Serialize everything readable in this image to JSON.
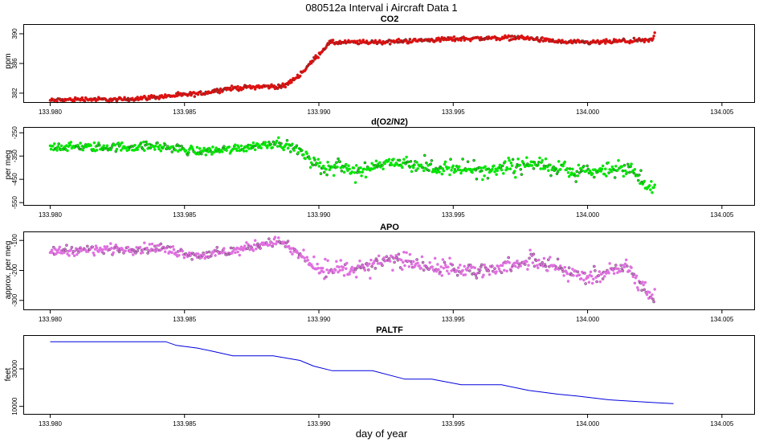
{
  "figure": {
    "title": "080512a   Interval i Aircraft Data 1",
    "xlabel": "day of year"
  },
  "colors": {
    "co2": "#e01010",
    "o2n2": "#00e600",
    "apo": "#e070e0",
    "paltf": "#0000dd",
    "outline": "#333333"
  },
  "chart_data": [
    {
      "type": "scatter",
      "title": "CO2",
      "ylabel": "ppm",
      "xlim": [
        133.979,
        134.0062
      ],
      "ylim": [
        380.8,
        391.3
      ],
      "x_ticks": [
        "133.980",
        "133.985",
        "133.990",
        "133.995",
        "134.000",
        "134.005"
      ],
      "y_ticks": [
        "382",
        "386",
        "390"
      ],
      "x_range": [
        133.98,
        134.0025
      ],
      "series": [
        {
          "name": "CO2",
          "knots_x": [
            133.98,
            133.9812,
            133.9825,
            133.984,
            133.9855,
            133.9866,
            133.9878,
            133.9887,
            133.9893,
            133.9904,
            133.9925,
            133.995,
            133.9975,
            133.999,
            134.0,
            134.0013,
            134.0024,
            134.0025
          ],
          "knots_y": [
            381.0,
            381.2,
            381.1,
            381.5,
            381.9,
            382.6,
            382.9,
            382.9,
            384.5,
            388.8,
            388.9,
            389.3,
            389.5,
            388.9,
            388.8,
            389.0,
            389.1,
            390.0
          ],
          "noise": 0.18
        }
      ]
    },
    {
      "type": "scatter",
      "title": "d(O2/N2)",
      "ylabel": "per meg",
      "xlim": [
        133.979,
        134.0062
      ],
      "ylim": [
        -560,
        -225
      ],
      "x_ticks": [
        "133.980",
        "133.985",
        "133.990",
        "133.995",
        "134.000",
        "134.005"
      ],
      "y_ticks": [
        "-250",
        "-350",
        "-450",
        "-550"
      ],
      "x_range": [
        133.98,
        134.0025
      ],
      "series": [
        {
          "name": "d(O2/N2)",
          "knots_x": [
            133.98,
            133.982,
            133.984,
            133.9855,
            133.9866,
            133.988,
            133.9885,
            133.9893,
            133.99,
            133.9915,
            133.9925,
            133.994,
            133.996,
            133.998,
            134.0,
            134.0015,
            134.0024
          ],
          "knots_y": [
            -310,
            -312,
            -308,
            -330,
            -322,
            -300,
            -290,
            -330,
            -395,
            -410,
            -375,
            -400,
            -410,
            -385,
            -425,
            -390,
            -500
          ],
          "noise": 12
        }
      ]
    },
    {
      "type": "scatter",
      "title": "APO",
      "ylabel": "approx. per meg",
      "xlim": [
        133.979,
        134.0062
      ],
      "ylim": [
        -330,
        -70
      ],
      "x_ticks": [
        "133.980",
        "133.985",
        "133.990",
        "133.995",
        "134.000",
        "134.005"
      ],
      "y_ticks": [
        "-100",
        "-200",
        "-300"
      ],
      "x_range": [
        133.98,
        134.0025
      ],
      "series": [
        {
          "name": "APO",
          "knots_x": [
            133.98,
            133.982,
            133.984,
            133.9855,
            133.9866,
            133.988,
            133.9885,
            133.9893,
            133.99,
            133.9915,
            133.9925,
            133.994,
            133.996,
            133.998,
            134.0,
            134.0015,
            134.0024
          ],
          "knots_y": [
            -135,
            -130,
            -125,
            -150,
            -140,
            -110,
            -100,
            -150,
            -200,
            -200,
            -160,
            -190,
            -200,
            -170,
            -220,
            -190,
            -295
          ],
          "noise": 10
        }
      ]
    },
    {
      "type": "line",
      "title": "PALTF",
      "ylabel": "feet",
      "xlim": [
        133.979,
        134.0062
      ],
      "ylim": [
        6000,
        48000
      ],
      "x_ticks": [
        "133.980",
        "133.985",
        "133.990",
        "133.995",
        "134.000",
        "134.005"
      ],
      "y_ticks": [
        "10000",
        "30000"
      ],
      "series": [
        {
          "name": "PALTF",
          "x": [
            133.98,
            133.9843,
            133.9847,
            133.9855,
            133.986,
            133.9868,
            133.9883,
            133.9893,
            133.9898,
            133.9905,
            133.992,
            133.9932,
            133.9942,
            133.9953,
            133.9968,
            133.9978,
            133.9989,
            133.9996,
            134.0008,
            134.0025,
            134.0032
          ],
          "y": [
            44500,
            44500,
            42500,
            41000,
            39500,
            37000,
            37000,
            34500,
            31500,
            29000,
            29000,
            24500,
            24500,
            21500,
            21500,
            18500,
            16500,
            15500,
            13500,
            12000,
            11500
          ]
        }
      ]
    }
  ]
}
